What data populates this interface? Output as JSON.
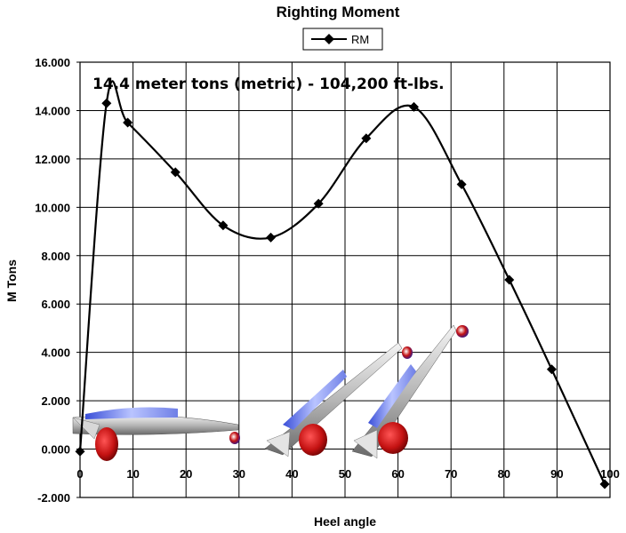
{
  "chart_data": {
    "type": "line",
    "title": "Righting Moment",
    "xlabel": "Heel angle",
    "ylabel": "M Tons",
    "annotation": "14.4 meter tons (metric) - 104,200 ft-lbs.",
    "legend": {
      "position": "top-center",
      "entries": [
        "RM"
      ]
    },
    "grid": true,
    "xlim": [
      0,
      100
    ],
    "ylim": [
      -2,
      16
    ],
    "x_ticks": [
      0,
      10,
      20,
      30,
      40,
      50,
      60,
      70,
      80,
      90,
      100
    ],
    "y_ticks": [
      -2,
      0,
      2,
      4,
      6,
      8,
      10,
      12,
      14,
      16
    ],
    "x_tick_labels": [
      "0",
      "10",
      "20",
      "30",
      "40",
      "50",
      "60",
      "70",
      "80",
      "90",
      "100"
    ],
    "y_tick_labels": [
      "-2.000",
      "0.000",
      "2.000",
      "4.000",
      "6.000",
      "8.000",
      "10.000",
      "12.000",
      "14.000",
      "16.000"
    ],
    "series": [
      {
        "name": "RM",
        "color": "#000000",
        "marker": "diamond",
        "x": [
          0,
          5,
          9,
          18,
          27,
          36,
          45,
          54,
          63,
          72,
          81,
          89,
          99
        ],
        "y": [
          -0.1,
          14.3,
          13.5,
          11.45,
          9.25,
          8.75,
          10.15,
          12.85,
          14.15,
          10.95,
          7.0,
          3.3,
          -1.45
        ]
      }
    ]
  }
}
